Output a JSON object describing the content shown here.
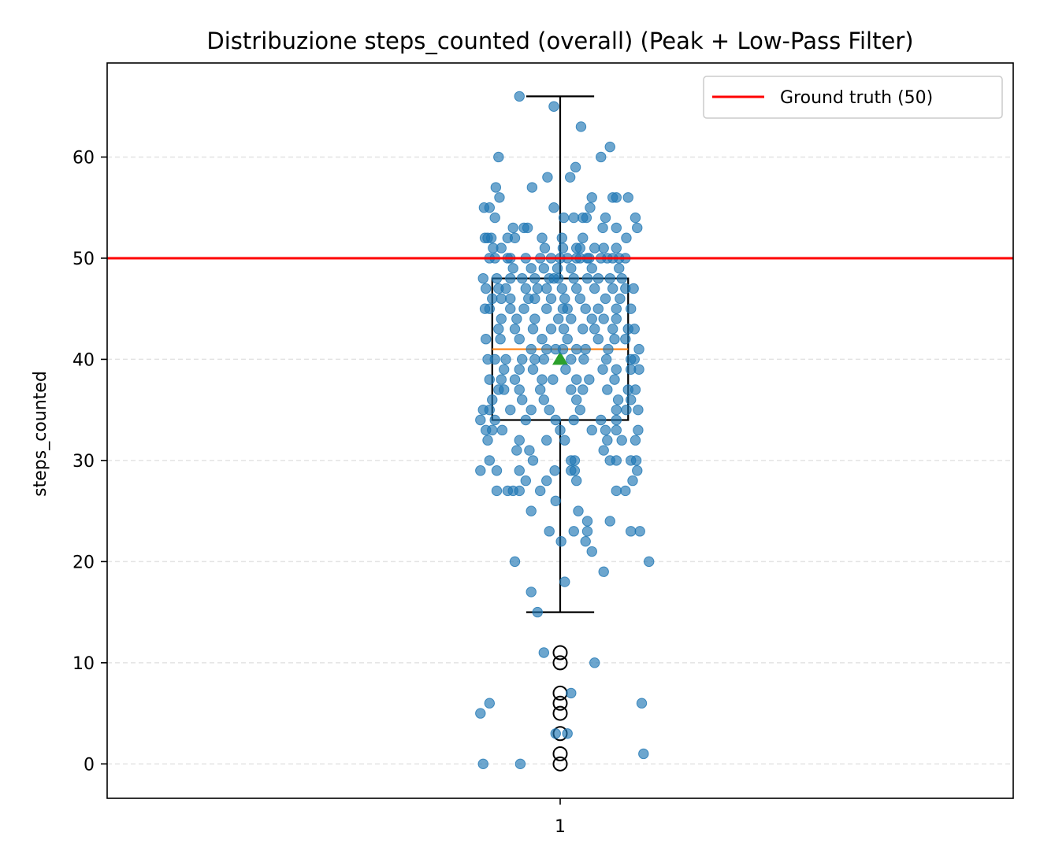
{
  "chart_data": {
    "type": "box",
    "title": "Distribuzione steps_counted (overall) (Peak + Low-Pass Filter)",
    "xlabel": "",
    "ylabel": "steps_counted",
    "categories": [
      "1"
    ],
    "ylim": [
      -3.4,
      69.3
    ],
    "yticks": [
      0,
      10,
      20,
      30,
      40,
      50,
      60
    ],
    "grid": "y-dashed",
    "legend": {
      "placement": "top-right",
      "entries": [
        "Ground truth (50)"
      ]
    },
    "reference_line": {
      "name": "Ground truth (50)",
      "y": 50,
      "color": "#ff0000"
    },
    "box": {
      "q1": 34,
      "median": 41,
      "q3": 48,
      "whisker_low": 15,
      "whisker_high": 66,
      "mean": 40,
      "outliers": [
        11,
        10,
        7,
        6,
        5,
        3,
        1,
        0
      ],
      "box_color": "#000000",
      "median_color": "#ff7f0e",
      "mean_color": "#2ca02c"
    },
    "points_color": "#1f77b4",
    "points": [
      [
        0.955,
        66
      ],
      [
        0.993,
        65
      ],
      [
        1.023,
        63
      ],
      [
        0.932,
        60
      ],
      [
        1.045,
        60
      ],
      [
        1.055,
        61
      ],
      [
        0.986,
        58
      ],
      [
        1.011,
        58
      ],
      [
        1.017,
        59
      ],
      [
        0.929,
        57
      ],
      [
        0.969,
        57
      ],
      [
        0.993,
        55
      ],
      [
        1.033,
        55
      ],
      [
        1.035,
        56
      ],
      [
        1.058,
        56
      ],
      [
        1.062,
        56
      ],
      [
        1.075,
        56
      ],
      [
        0.933,
        56
      ],
      [
        0.916,
        55
      ],
      [
        0.922,
        55
      ],
      [
        0.928,
        54
      ],
      [
        1.004,
        54
      ],
      [
        1.015,
        54
      ],
      [
        1.025,
        54
      ],
      [
        1.029,
        54
      ],
      [
        1.05,
        54
      ],
      [
        1.083,
        54
      ],
      [
        0.948,
        53
      ],
      [
        0.96,
        53
      ],
      [
        0.964,
        53
      ],
      [
        0.98,
        52
      ],
      [
        1.002,
        52
      ],
      [
        1.025,
        52
      ],
      [
        1.047,
        53
      ],
      [
        1.062,
        53
      ],
      [
        1.085,
        53
      ],
      [
        0.917,
        52
      ],
      [
        0.92,
        52
      ],
      [
        0.924,
        52
      ],
      [
        0.935,
        51
      ],
      [
        0.942,
        52
      ],
      [
        0.95,
        52
      ],
      [
        0.983,
        51
      ],
      [
        1.003,
        51
      ],
      [
        1.018,
        51
      ],
      [
        1.022,
        51
      ],
      [
        1.032,
        50
      ],
      [
        1.038,
        51
      ],
      [
        1.048,
        51
      ],
      [
        1.062,
        51
      ],
      [
        1.073,
        52
      ],
      [
        0.926,
        51
      ],
      [
        0.922,
        50
      ],
      [
        0.928,
        50
      ],
      [
        0.942,
        50
      ],
      [
        0.945,
        50
      ],
      [
        0.962,
        50
      ],
      [
        0.978,
        50
      ],
      [
        0.99,
        50
      ],
      [
        1.0,
        50
      ],
      [
        1.008,
        50
      ],
      [
        1.018,
        50
      ],
      [
        1.022,
        50
      ],
      [
        1.03,
        50
      ],
      [
        1.045,
        50
      ],
      [
        1.052,
        50
      ],
      [
        1.058,
        50
      ],
      [
        1.065,
        50
      ],
      [
        1.072,
        50
      ],
      [
        0.948,
        49
      ],
      [
        0.968,
        49
      ],
      [
        0.982,
        49
      ],
      [
        0.997,
        49
      ],
      [
        1.012,
        49
      ],
      [
        1.035,
        49
      ],
      [
        1.065,
        49
      ],
      [
        0.915,
        48
      ],
      [
        0.93,
        48
      ],
      [
        0.945,
        48
      ],
      [
        0.958,
        48
      ],
      [
        0.972,
        48
      ],
      [
        0.988,
        48
      ],
      [
        0.993,
        48
      ],
      [
        0.998,
        48
      ],
      [
        1.015,
        48
      ],
      [
        1.03,
        48
      ],
      [
        1.042,
        48
      ],
      [
        1.055,
        48
      ],
      [
        1.068,
        48
      ],
      [
        0.918,
        47
      ],
      [
        0.932,
        47
      ],
      [
        0.94,
        47
      ],
      [
        0.962,
        47
      ],
      [
        0.975,
        47
      ],
      [
        0.985,
        47
      ],
      [
        1.002,
        47
      ],
      [
        1.018,
        47
      ],
      [
        1.038,
        47
      ],
      [
        1.058,
        47
      ],
      [
        1.072,
        47
      ],
      [
        1.081,
        47
      ],
      [
        0.925,
        46
      ],
      [
        0.935,
        46
      ],
      [
        0.945,
        46
      ],
      [
        0.965,
        46
      ],
      [
        0.972,
        46
      ],
      [
        0.99,
        46
      ],
      [
        1.005,
        46
      ],
      [
        1.022,
        46
      ],
      [
        1.05,
        46
      ],
      [
        1.066,
        46
      ],
      [
        0.917,
        45
      ],
      [
        0.922,
        45
      ],
      [
        0.945,
        45
      ],
      [
        0.96,
        45
      ],
      [
        0.985,
        45
      ],
      [
        1.003,
        45
      ],
      [
        1.008,
        45
      ],
      [
        1.028,
        45
      ],
      [
        1.042,
        45
      ],
      [
        1.062,
        45
      ],
      [
        1.078,
        45
      ],
      [
        0.935,
        44
      ],
      [
        0.952,
        44
      ],
      [
        0.972,
        44
      ],
      [
        0.998,
        44
      ],
      [
        1.012,
        44
      ],
      [
        1.035,
        44
      ],
      [
        1.048,
        44
      ],
      [
        1.062,
        44
      ],
      [
        0.932,
        43
      ],
      [
        0.95,
        43
      ],
      [
        0.97,
        43
      ],
      [
        0.99,
        43
      ],
      [
        1.004,
        43
      ],
      [
        1.025,
        43
      ],
      [
        1.038,
        43
      ],
      [
        1.058,
        43
      ],
      [
        1.075,
        43
      ],
      [
        1.082,
        43
      ],
      [
        0.918,
        42
      ],
      [
        0.934,
        42
      ],
      [
        0.955,
        42
      ],
      [
        0.98,
        42
      ],
      [
        1.008,
        42
      ],
      [
        1.042,
        42
      ],
      [
        1.06,
        42
      ],
      [
        1.072,
        42
      ],
      [
        0.968,
        41
      ],
      [
        0.985,
        41
      ],
      [
        0.995,
        41
      ],
      [
        1.003,
        41
      ],
      [
        1.018,
        41
      ],
      [
        1.028,
        41
      ],
      [
        1.053,
        41
      ],
      [
        1.087,
        41
      ],
      [
        0.92,
        40
      ],
      [
        0.928,
        40
      ],
      [
        0.94,
        40
      ],
      [
        0.958,
        40
      ],
      [
        0.972,
        40
      ],
      [
        0.982,
        40
      ],
      [
        1.012,
        40
      ],
      [
        1.026,
        40
      ],
      [
        1.051,
        40
      ],
      [
        1.078,
        40
      ],
      [
        1.082,
        40
      ],
      [
        0.938,
        39
      ],
      [
        0.955,
        39
      ],
      [
        0.97,
        39
      ],
      [
        1.006,
        39
      ],
      [
        1.047,
        39
      ],
      [
        1.062,
        39
      ],
      [
        1.078,
        39
      ],
      [
        1.087,
        39
      ],
      [
        0.922,
        38
      ],
      [
        0.935,
        38
      ],
      [
        0.95,
        38
      ],
      [
        0.98,
        38
      ],
      [
        0.992,
        38
      ],
      [
        1.018,
        38
      ],
      [
        1.032,
        38
      ],
      [
        1.06,
        38
      ],
      [
        0.932,
        37
      ],
      [
        0.938,
        37
      ],
      [
        0.955,
        37
      ],
      [
        0.978,
        37
      ],
      [
        1.012,
        37
      ],
      [
        1.025,
        37
      ],
      [
        1.052,
        37
      ],
      [
        1.075,
        37
      ],
      [
        1.083,
        37
      ],
      [
        0.925,
        36
      ],
      [
        0.958,
        36
      ],
      [
        0.982,
        36
      ],
      [
        1.018,
        36
      ],
      [
        1.064,
        36
      ],
      [
        1.078,
        36
      ],
      [
        0.915,
        35
      ],
      [
        0.922,
        35
      ],
      [
        0.945,
        35
      ],
      [
        0.968,
        35
      ],
      [
        0.988,
        35
      ],
      [
        1.022,
        35
      ],
      [
        1.062,
        35
      ],
      [
        1.073,
        35
      ],
      [
        1.086,
        35
      ],
      [
        0.912,
        34
      ],
      [
        0.928,
        34
      ],
      [
        0.962,
        34
      ],
      [
        0.995,
        34
      ],
      [
        1.015,
        34
      ],
      [
        1.045,
        34
      ],
      [
        1.062,
        34
      ],
      [
        0.918,
        33
      ],
      [
        0.925,
        33
      ],
      [
        0.936,
        33
      ],
      [
        1.0,
        33
      ],
      [
        1.035,
        33
      ],
      [
        1.05,
        33
      ],
      [
        1.062,
        33
      ],
      [
        1.086,
        33
      ],
      [
        0.92,
        32
      ],
      [
        0.955,
        32
      ],
      [
        0.985,
        32
      ],
      [
        1.005,
        32
      ],
      [
        1.052,
        32
      ],
      [
        1.068,
        32
      ],
      [
        1.083,
        32
      ],
      [
        0.952,
        31
      ],
      [
        0.966,
        31
      ],
      [
        1.048,
        31
      ],
      [
        0.922,
        30
      ],
      [
        0.97,
        30
      ],
      [
        1.012,
        30
      ],
      [
        1.016,
        30
      ],
      [
        1.055,
        30
      ],
      [
        1.062,
        30
      ],
      [
        1.078,
        30
      ],
      [
        1.084,
        30
      ],
      [
        0.912,
        29
      ],
      [
        0.93,
        29
      ],
      [
        0.955,
        29
      ],
      [
        0.994,
        29
      ],
      [
        1.012,
        29
      ],
      [
        1.016,
        29
      ],
      [
        1.085,
        29
      ],
      [
        0.93,
        27
      ],
      [
        0.942,
        27
      ],
      [
        0.948,
        27
      ],
      [
        0.955,
        27
      ],
      [
        0.962,
        28
      ],
      [
        0.978,
        27
      ],
      [
        0.985,
        28
      ],
      [
        1.018,
        28
      ],
      [
        1.062,
        27
      ],
      [
        1.072,
        27
      ],
      [
        1.08,
        28
      ],
      [
        0.968,
        25
      ],
      [
        0.995,
        26
      ],
      [
        1.02,
        25
      ],
      [
        0.988,
        23
      ],
      [
        1.015,
        23
      ],
      [
        1.03,
        23
      ],
      [
        1.078,
        23
      ],
      [
        1.088,
        23
      ],
      [
        1.03,
        24
      ],
      [
        1.055,
        24
      ],
      [
        1.001,
        22
      ],
      [
        1.028,
        22
      ],
      [
        0.95,
        20
      ],
      [
        1.035,
        21
      ],
      [
        1.048,
        19
      ],
      [
        1.098,
        20
      ],
      [
        0.968,
        17
      ],
      [
        0.975,
        15
      ],
      [
        1.005,
        18
      ],
      [
        0.982,
        11
      ],
      [
        1.038,
        10
      ],
      [
        1.012,
        7
      ],
      [
        0.922,
        6
      ],
      [
        1.09,
        6
      ],
      [
        0.912,
        5
      ],
      [
        0.995,
        3
      ],
      [
        1.008,
        3
      ],
      [
        1.092,
        1
      ],
      [
        0.915,
        0
      ],
      [
        0.956,
        0
      ]
    ]
  }
}
